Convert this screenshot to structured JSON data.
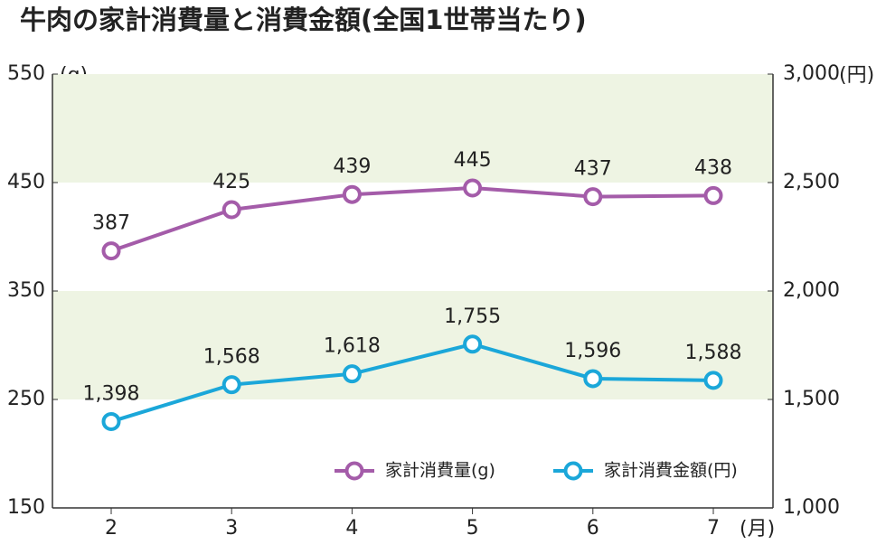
{
  "chart_data": {
    "type": "line",
    "title": "牛肉の家計消費量と消費金額(全国1世帯当たり)",
    "categories": [
      "2",
      "3",
      "4",
      "5",
      "6",
      "7"
    ],
    "xlabel": "(月)",
    "ylabel": "(g)",
    "y2label": "(円)",
    "series": [
      {
        "name": "家計消費量(g)",
        "color": "#a45ca9",
        "values": [
          387,
          425,
          439,
          445,
          437,
          438
        ]
      },
      {
        "name": "家計消費金額(円)",
        "color": "#1ba7d9",
        "axis": "y2",
        "values": [
          1398,
          1568,
          1618,
          1755,
          1596,
          1588
        ],
        "value_labels": [
          "1,398",
          "1,568",
          "1,618",
          "1,755",
          "1,596",
          "1,588"
        ]
      }
    ],
    "ylim": [
      150,
      550
    ],
    "yticks": [
      150,
      250,
      350,
      450,
      550
    ],
    "y2lim": [
      1000,
      3000
    ],
    "y2ticks": [
      {
        "value": 1000,
        "label": "1,000"
      },
      {
        "value": 1500,
        "label": "1,500"
      },
      {
        "value": 2000,
        "label": "2,000"
      },
      {
        "value": 2500,
        "label": "2,500"
      },
      {
        "value": 3000,
        "label": "3,000"
      }
    ],
    "grid": "bands",
    "band_color": "#eef4e3",
    "legend": "bottom-right"
  }
}
